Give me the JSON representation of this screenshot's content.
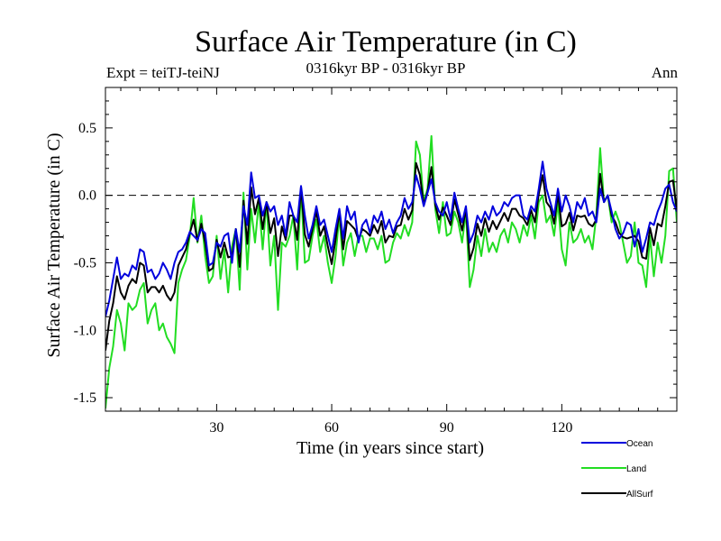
{
  "chart_data": {
    "type": "line",
    "title": "Surface Air Temperature (in C)",
    "subtitle_left": "Expt = teiTJ-teiNJ",
    "subtitle_center": "0316kyr BP - 0316kyr BP",
    "subtitle_right": "Ann",
    "xlabel": "Time (in years since start)",
    "ylabel": "Surface Air Temperature (in C)",
    "xlim": [
      1,
      150
    ],
    "ylim": [
      -1.6,
      0.8
    ],
    "xticks": [
      30,
      60,
      90,
      120
    ],
    "yticks": [
      -1.5,
      -1.0,
      -0.5,
      0.0,
      0.5
    ],
    "ytick_labels": [
      "-1.5",
      "-1.0",
      "-0.5",
      "0.0",
      "0.5"
    ],
    "reference_line": 0.0,
    "legend_position": "bottom-right",
    "series": [
      {
        "name": "Ocean",
        "color": "#0000dd",
        "values": [
          -0.9,
          -0.78,
          -0.62,
          -0.46,
          -0.62,
          -0.58,
          -0.6,
          -0.52,
          -0.55,
          -0.4,
          -0.42,
          -0.57,
          -0.55,
          -0.62,
          -0.58,
          -0.5,
          -0.55,
          -0.62,
          -0.5,
          -0.42,
          -0.4,
          -0.35,
          -0.27,
          -0.3,
          -0.33,
          -0.25,
          -0.28,
          -0.52,
          -0.5,
          -0.35,
          -0.38,
          -0.3,
          -0.28,
          -0.5,
          -0.25,
          -0.42,
          -0.08,
          -0.22,
          0.17,
          -0.02,
          0.0,
          -0.15,
          -0.05,
          -0.12,
          -0.08,
          -0.22,
          -0.15,
          -0.3,
          -0.05,
          -0.15,
          -0.2,
          0.07,
          -0.15,
          -0.32,
          -0.22,
          -0.08,
          -0.22,
          -0.18,
          -0.3,
          -0.42,
          -0.25,
          -0.1,
          -0.32,
          -0.08,
          -0.18,
          -0.12,
          -0.35,
          -0.22,
          -0.18,
          -0.28,
          -0.15,
          -0.2,
          -0.12,
          -0.25,
          -0.18,
          -0.28,
          -0.2,
          -0.15,
          -0.02,
          -0.1,
          -0.05,
          0.15,
          0.05,
          -0.08,
          0.02,
          0.12,
          -0.05,
          -0.12,
          -0.15,
          -0.05,
          -0.18,
          0.02,
          -0.1,
          -0.2,
          -0.08,
          -0.35,
          -0.28,
          -0.15,
          -0.2,
          -0.12,
          -0.18,
          -0.08,
          -0.15,
          -0.12,
          -0.05,
          -0.08,
          -0.02,
          0.0,
          0.0,
          -0.15,
          -0.18,
          -0.08,
          -0.12,
          0.05,
          0.25,
          0.05,
          -0.05,
          -0.15,
          0.05,
          -0.12,
          0.0,
          -0.08,
          -0.2,
          -0.05,
          -0.1,
          -0.02,
          -0.15,
          -0.12,
          -0.2,
          0.05,
          -0.05,
          0.0,
          -0.12,
          -0.25,
          -0.32,
          -0.28,
          -0.2,
          -0.22,
          -0.38,
          -0.25,
          -0.42,
          -0.32,
          -0.2,
          -0.22,
          -0.12,
          -0.05,
          0.05,
          0.08,
          -0.05,
          -0.12
        ]
      },
      {
        "name": "Land",
        "color": "#22dd22",
        "values": [
          -1.58,
          -1.28,
          -1.12,
          -0.85,
          -0.95,
          -1.15,
          -0.8,
          -0.85,
          -0.82,
          -0.7,
          -0.65,
          -0.95,
          -0.85,
          -0.8,
          -1.0,
          -0.95,
          -1.05,
          -1.1,
          -1.17,
          -0.65,
          -0.55,
          -0.48,
          -0.3,
          -0.02,
          -0.35,
          -0.15,
          -0.45,
          -0.65,
          -0.6,
          -0.3,
          -0.62,
          -0.4,
          -0.72,
          -0.38,
          -0.25,
          -0.7,
          0.02,
          -0.55,
          -0.1,
          -0.35,
          -0.05,
          -0.4,
          -0.05,
          -0.52,
          -0.3,
          -0.85,
          -0.35,
          -0.38,
          -0.3,
          -0.15,
          -0.55,
          0.05,
          -0.5,
          -0.48,
          -0.3,
          -0.18,
          -0.42,
          -0.3,
          -0.5,
          -0.65,
          -0.45,
          -0.15,
          -0.52,
          -0.35,
          -0.28,
          -0.45,
          -0.3,
          -0.3,
          -0.42,
          -0.32,
          -0.32,
          -0.4,
          -0.3,
          -0.5,
          -0.48,
          -0.35,
          -0.28,
          -0.32,
          -0.22,
          -0.3,
          -0.2,
          0.4,
          0.3,
          -0.05,
          0.05,
          0.44,
          -0.1,
          -0.28,
          -0.05,
          -0.3,
          -0.28,
          -0.12,
          -0.2,
          -0.35,
          -0.12,
          -0.68,
          -0.55,
          -0.3,
          -0.45,
          -0.25,
          -0.42,
          -0.35,
          -0.42,
          -0.3,
          -0.25,
          -0.35,
          -0.2,
          -0.25,
          -0.35,
          -0.22,
          -0.3,
          -0.15,
          -0.32,
          -0.05,
          0.0,
          -0.2,
          -0.15,
          -0.3,
          -0.05,
          -0.4,
          -0.52,
          -0.2,
          -0.35,
          -0.32,
          -0.25,
          -0.35,
          -0.3,
          -0.4,
          -0.15,
          0.35,
          -0.05,
          0.0,
          -0.2,
          -0.12,
          -0.2,
          -0.35,
          -0.5,
          -0.45,
          -0.2,
          -0.5,
          -0.52,
          -0.68,
          -0.3,
          -0.6,
          -0.35,
          -0.5,
          -0.3,
          0.18,
          0.2,
          -0.2
        ]
      },
      {
        "name": "AllSurf",
        "color": "#000000",
        "values": [
          -1.15,
          -0.93,
          -0.8,
          -0.6,
          -0.72,
          -0.77,
          -0.67,
          -0.62,
          -0.65,
          -0.5,
          -0.52,
          -0.72,
          -0.68,
          -0.68,
          -0.72,
          -0.67,
          -0.74,
          -0.78,
          -0.72,
          -0.52,
          -0.46,
          -0.4,
          -0.28,
          -0.18,
          -0.34,
          -0.21,
          -0.35,
          -0.56,
          -0.54,
          -0.33,
          -0.46,
          -0.35,
          -0.46,
          -0.45,
          -0.25,
          -0.53,
          -0.04,
          -0.36,
          0.06,
          -0.14,
          -0.02,
          -0.25,
          -0.05,
          -0.28,
          -0.17,
          -0.45,
          -0.23,
          -0.33,
          -0.15,
          -0.15,
          -0.33,
          0.06,
          -0.29,
          -0.38,
          -0.25,
          -0.12,
          -0.3,
          -0.23,
          -0.38,
          -0.51,
          -0.33,
          -0.12,
          -0.4,
          -0.19,
          -0.22,
          -0.25,
          -0.33,
          -0.25,
          -0.27,
          -0.3,
          -0.22,
          -0.28,
          -0.19,
          -0.35,
          -0.3,
          -0.31,
          -0.23,
          -0.22,
          -0.1,
          -0.18,
          -0.11,
          0.24,
          0.15,
          -0.07,
          0.03,
          0.21,
          -0.07,
          -0.18,
          -0.09,
          -0.15,
          -0.22,
          -0.03,
          -0.14,
          -0.26,
          -0.1,
          -0.48,
          -0.39,
          -0.21,
          -0.3,
          -0.17,
          -0.27,
          -0.19,
          -0.25,
          -0.19,
          -0.13,
          -0.19,
          -0.1,
          -0.1,
          -0.15,
          -0.17,
          -0.22,
          -0.11,
          -0.2,
          0.01,
          0.15,
          -0.05,
          -0.09,
          -0.21,
          0.01,
          -0.23,
          -0.21,
          -0.13,
          -0.26,
          -0.15,
          -0.16,
          -0.15,
          -0.21,
          -0.23,
          -0.18,
          0.16,
          -0.05,
          0.0,
          -0.15,
          -0.2,
          -0.28,
          -0.31,
          -0.32,
          -0.31,
          -0.3,
          -0.34,
          -0.46,
          -0.47,
          -0.24,
          -0.37,
          -0.21,
          -0.23,
          -0.08,
          0.1,
          0.11,
          -0.11
        ]
      }
    ]
  }
}
